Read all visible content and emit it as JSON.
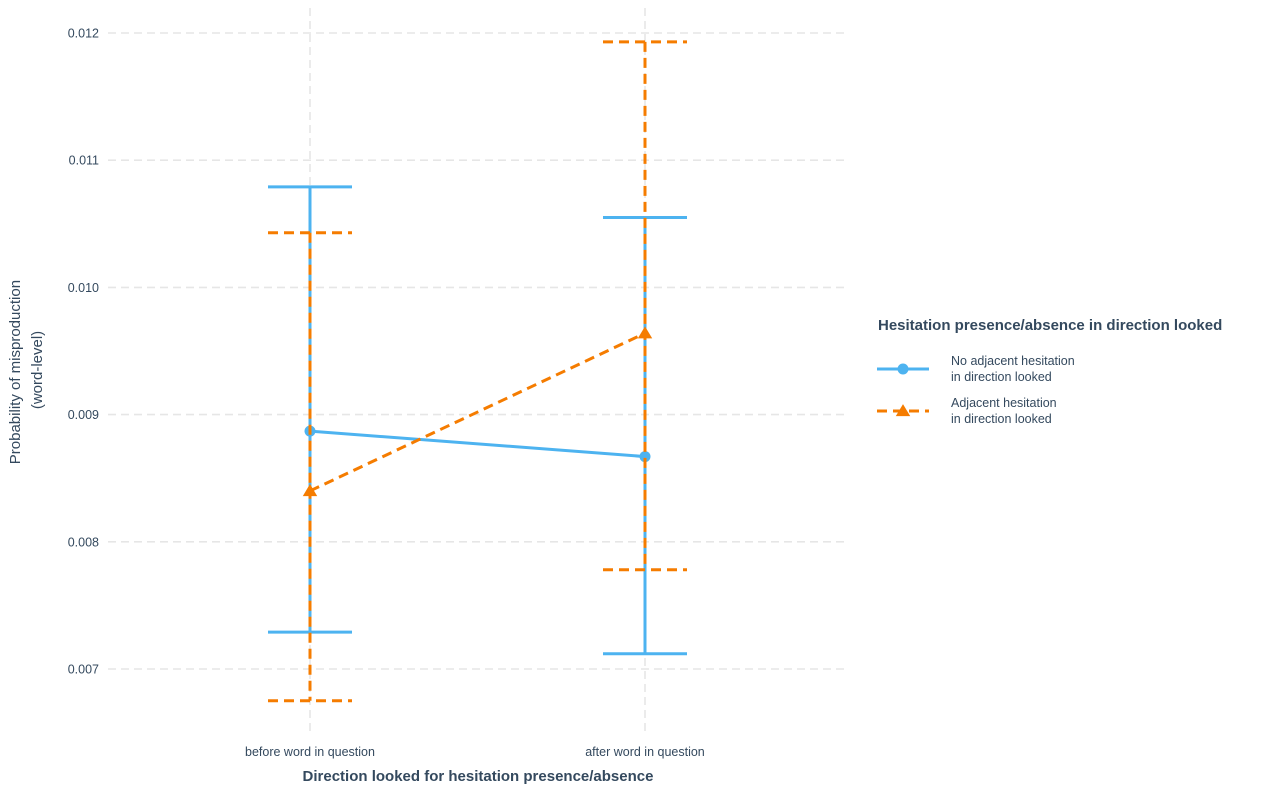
{
  "chart_data": {
    "type": "line",
    "xlabel": "Direction looked for hesitation presence/absence",
    "ylabel_lines": [
      "Probability of misproduction",
      "(word-level)"
    ],
    "categories": [
      "before word in question",
      "after word in question"
    ],
    "ylim": [
      0.00655,
      0.0122
    ],
    "yticks": [
      0.007,
      0.008,
      0.009,
      0.01,
      0.011,
      0.012
    ],
    "ytick_labels": [
      "0.007",
      "0.008",
      "0.009",
      "0.010",
      "0.011",
      "0.012"
    ],
    "grid": true,
    "legend": {
      "title": "Hesitation presence/absence in direction looked",
      "position": "right"
    },
    "series": [
      {
        "name_lines": [
          "No adjacent hesitation",
          "in direction looked"
        ],
        "color": "#4db3f0",
        "marker": "circle",
        "dashed": false,
        "values": [
          0.00887,
          0.00867
        ],
        "lower": [
          0.00729,
          0.00712
        ],
        "upper": [
          0.01079,
          0.01055
        ]
      },
      {
        "name_lines": [
          "Adjacent hesitation",
          "in direction looked"
        ],
        "color": "#f57c00",
        "marker": "triangle",
        "dashed": true,
        "values": [
          0.0084,
          0.00964
        ],
        "lower": [
          0.00675,
          0.00778
        ],
        "upper": [
          0.01043,
          0.01193
        ]
      }
    ]
  }
}
